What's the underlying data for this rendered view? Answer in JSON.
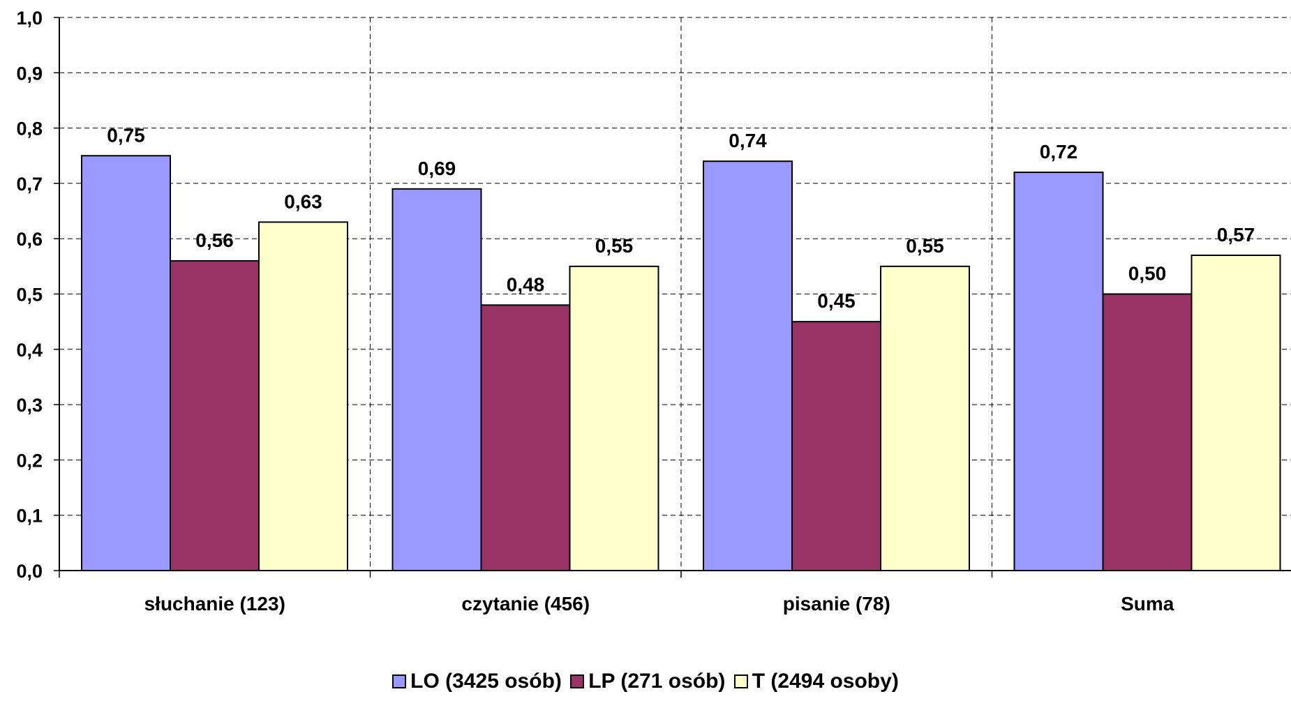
{
  "chart_data": {
    "type": "bar",
    "title": "",
    "xlabel": "",
    "ylabel": "",
    "ylim": [
      0,
      1.0
    ],
    "yticks": [
      "0,0",
      "0,1",
      "0,2",
      "0,3",
      "0,4",
      "0,5",
      "0,6",
      "0,7",
      "0,8",
      "0,9",
      "1,0"
    ],
    "categories": [
      "słuchanie (123)",
      "czytanie (456)",
      "pisanie (78)",
      "Suma"
    ],
    "series": [
      {
        "name": "LO (3425 osób)",
        "color": "#9999FF",
        "values": [
          0.75,
          0.69,
          0.74,
          0.72
        ],
        "labels": [
          "0,75",
          "0,69",
          "0,74",
          "0,72"
        ]
      },
      {
        "name": "LP (271 osób)",
        "color": "#993366",
        "values": [
          0.56,
          0.48,
          0.45,
          0.5
        ],
        "labels": [
          "0,56",
          "0,48",
          "0,45",
          "0,50"
        ]
      },
      {
        "name": "T (2494 osoby)",
        "color": "#FFFFCC",
        "values": [
          0.63,
          0.55,
          0.55,
          0.57
        ],
        "labels": [
          "0,63",
          "0,55",
          "0,55",
          "0,57"
        ]
      }
    ],
    "grid": true,
    "grid_style": "dashed",
    "legend_position": "bottom"
  }
}
